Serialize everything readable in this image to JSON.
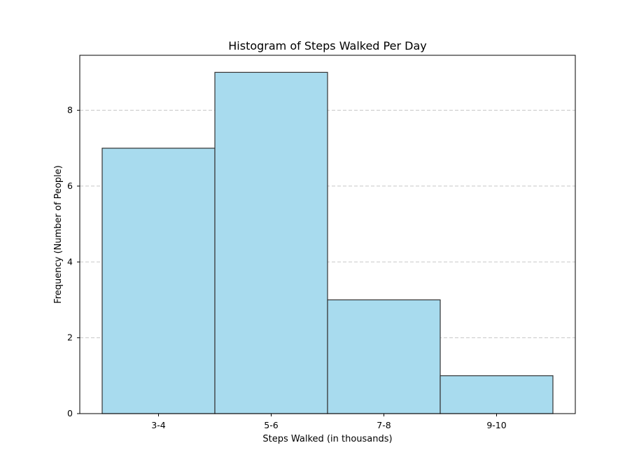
{
  "chart_data": {
    "type": "bar",
    "title": "Histogram of Steps Walked Per Day",
    "xlabel": "Steps Walked (in thousands)",
    "ylabel": "Frequency (Number of People)",
    "categories": [
      "3-4",
      "5-6",
      "7-8",
      "9-10"
    ],
    "values": [
      7,
      9,
      3,
      1
    ],
    "ylim": [
      0,
      9.45
    ],
    "yticks": [
      0,
      2,
      4,
      6,
      8
    ],
    "grid": {
      "axis": "y",
      "style": "dashed"
    },
    "colors": {
      "bar_fill": "#a8dbee",
      "bar_edge": "#333333",
      "grid": "#c8c8c8",
      "axis": "#000000"
    }
  }
}
